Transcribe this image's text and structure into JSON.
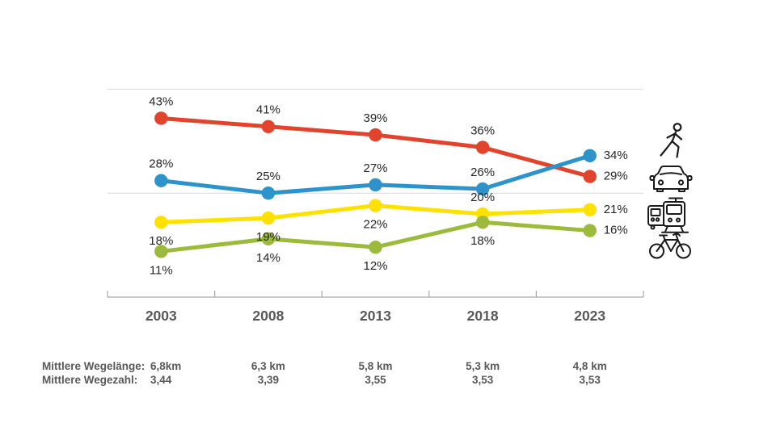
{
  "chart_data": {
    "type": "line",
    "categories": [
      "2003",
      "2008",
      "2013",
      "2018",
      "2023"
    ],
    "series": [
      {
        "name": "car",
        "icon": "car-icon",
        "color": "#e2432d",
        "values": [
          43,
          41,
          39,
          36,
          29
        ],
        "labels": [
          "43%",
          "41%",
          "39%",
          "36%",
          "29%"
        ],
        "label_pos": [
          "above",
          "above",
          "above",
          "above",
          "right"
        ]
      },
      {
        "name": "pedestrian",
        "icon": "pedestrian-icon",
        "color": "#2d93ca",
        "values": [
          28,
          25,
          27,
          26,
          34
        ],
        "labels": [
          "28%",
          "25%",
          "27%",
          "26%",
          "34%"
        ],
        "label_pos": [
          "above",
          "above",
          "above",
          "above",
          "right"
        ]
      },
      {
        "name": "public-transit",
        "icon": "public-transit-icon",
        "color": "#ffe100",
        "values": [
          18,
          19,
          22,
          20,
          21
        ],
        "labels": [
          "18%",
          "19%",
          "22%",
          "20%",
          "21%"
        ],
        "label_pos": [
          "below",
          "below",
          "below",
          "above",
          "right"
        ]
      },
      {
        "name": "bicycle",
        "icon": "bicycle-icon",
        "color": "#9cba3b",
        "values": [
          11,
          14,
          12,
          18,
          16
        ],
        "labels": [
          "11%",
          "14%",
          "12%",
          "18%",
          "16%"
        ],
        "label_pos": [
          "below",
          "below",
          "below",
          "below",
          "right"
        ]
      }
    ],
    "ylim": [
      0,
      50
    ],
    "gridlines_pct": [
      25,
      50
    ],
    "grid_on": true,
    "legend_position": "right-icons",
    "legend_icons": [
      "pedestrian-icon",
      "car-icon",
      "public-transit-icon",
      "bicycle-icon"
    ]
  },
  "colors": {
    "grid": "#d9d9d9",
    "axis": "#a6a6a6",
    "year_label": "#595959",
    "data_label": "#262626",
    "footer_text": "#595959",
    "icon_stroke": "#1a1a1a"
  },
  "footer": {
    "rows": [
      {
        "label": "Mittlere Wegelänge:",
        "values": [
          "6,8km",
          "6,3 km",
          "5,8 km",
          "5,3 km",
          "4,8 km"
        ]
      },
      {
        "label": "Mittlere Wegezahl:",
        "values": [
          "3,44",
          "3,39",
          "3,55",
          "3,53",
          "3,53"
        ]
      }
    ]
  }
}
